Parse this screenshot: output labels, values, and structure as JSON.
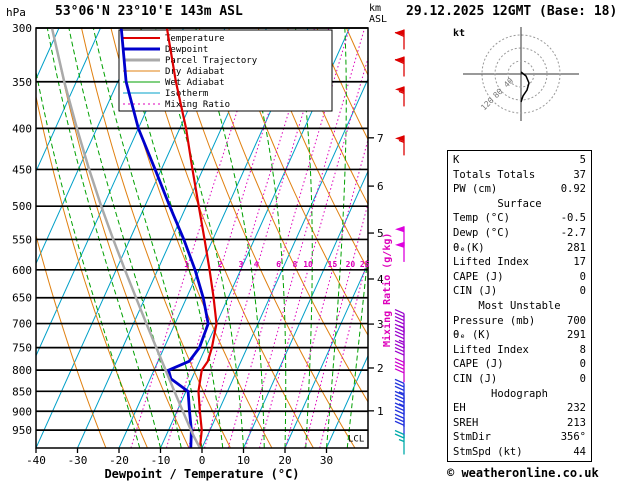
{
  "header": {
    "pressure_unit": "hPa",
    "station_title": "53°06'N 23°10'E 143m ASL",
    "datetime_title": "29.12.2025 12GMT (Base: 18)",
    "altitude_unit_line1": "km",
    "altitude_unit_line2": "ASL"
  },
  "footer": {
    "copyright": "© weatheronline.co.uk"
  },
  "legend": [
    {
      "label": "Temperature",
      "color": "#dd0000",
      "width": 2,
      "style": "solid"
    },
    {
      "label": "Dewpoint",
      "color": "#0000cc",
      "width": 3,
      "style": "solid"
    },
    {
      "label": "Parcel Trajectory",
      "color": "#aaaaaa",
      "width": 3,
      "style": "solid"
    },
    {
      "label": "Dry Adiabat",
      "color": "#e08010",
      "width": 1,
      "style": "solid"
    },
    {
      "label": "Wet Adiabat",
      "color": "#00a000",
      "width": 1,
      "style": "solid"
    },
    {
      "label": "Isotherm",
      "color": "#00a0c8",
      "width": 1,
      "style": "solid"
    },
    {
      "label": "Mixing Ratio",
      "color": "#dd00bb",
      "width": 1,
      "style": "dotted"
    }
  ],
  "axes": {
    "pressure_ticks": [
      300,
      350,
      400,
      450,
      500,
      550,
      600,
      650,
      700,
      750,
      800,
      850,
      900,
      950
    ],
    "temp_ticks": [
      -40,
      -30,
      -20,
      -10,
      0,
      10,
      20,
      30
    ],
    "xlabel": "Dewpoint / Temperature (°C)",
    "km_ticks": [
      {
        "km": 7,
        "p": 411
      },
      {
        "km": 6,
        "p": 472
      },
      {
        "km": 5,
        "p": 540
      },
      {
        "km": 4,
        "p": 616
      },
      {
        "km": 3,
        "p": 701
      },
      {
        "km": 2,
        "p": 795
      },
      {
        "km": 1,
        "p": 899
      }
    ],
    "mixing_ratio_values": [
      1,
      2,
      3,
      4,
      6,
      8,
      10,
      15,
      20,
      25
    ],
    "mixing_ratio_axis_label": "Mixing Ratio (g/kg)",
    "lcl_label": "LCL",
    "lcl_pressure": 970
  },
  "chart_data": {
    "type": "line",
    "title": "Skew-T log-P sounding 53°06'N 23°10'E 143m ASL 29.12.2025 12GMT",
    "x_axis": {
      "label": "Dewpoint / Temperature (°C)",
      "min": -40,
      "max": 40,
      "unit": "°C"
    },
    "y_axis": {
      "label": "hPa",
      "min": 300,
      "max": 1000,
      "scale": "log",
      "unit": "hPa"
    },
    "series": [
      {
        "name": "Temperature",
        "color": "#dd0000",
        "width": 2.2,
        "points": [
          [
            1000,
            -0.5
          ],
          [
            950,
            -2
          ],
          [
            900,
            -4.5
          ],
          [
            850,
            -7
          ],
          [
            800,
            -8.5
          ],
          [
            780,
            -8
          ],
          [
            750,
            -8.5
          ],
          [
            700,
            -10
          ],
          [
            650,
            -13.5
          ],
          [
            600,
            -17.5
          ],
          [
            550,
            -22
          ],
          [
            500,
            -27
          ],
          [
            450,
            -32.5
          ],
          [
            400,
            -38.5
          ],
          [
            350,
            -46
          ],
          [
            300,
            -54
          ]
        ]
      },
      {
        "name": "Dewpoint",
        "color": "#0000cc",
        "width": 2.8,
        "points": [
          [
            1000,
            -2.7
          ],
          [
            950,
            -4.5
          ],
          [
            900,
            -7
          ],
          [
            850,
            -9.5
          ],
          [
            820,
            -15
          ],
          [
            800,
            -16.5
          ],
          [
            780,
            -12.5
          ],
          [
            750,
            -11.5
          ],
          [
            700,
            -12
          ],
          [
            650,
            -16
          ],
          [
            600,
            -21
          ],
          [
            550,
            -27
          ],
          [
            500,
            -34
          ],
          [
            450,
            -41.5
          ],
          [
            400,
            -50
          ],
          [
            350,
            -58
          ],
          [
            300,
            -65
          ]
        ]
      },
      {
        "name": "Parcel Trajectory",
        "color": "#aaaaaa",
        "width": 2.5,
        "points": [
          [
            1000,
            -0.5
          ],
          [
            970,
            -3
          ],
          [
            950,
            -4.6
          ],
          [
            900,
            -8.6
          ],
          [
            850,
            -12.8
          ],
          [
            800,
            -17.2
          ],
          [
            750,
            -21.9
          ],
          [
            700,
            -26.9
          ],
          [
            650,
            -32.2
          ],
          [
            600,
            -37.9
          ],
          [
            550,
            -44
          ],
          [
            500,
            -50.5
          ],
          [
            450,
            -57.4
          ],
          [
            400,
            -64.8
          ],
          [
            350,
            -72.9
          ],
          [
            300,
            -81.7
          ]
        ]
      }
    ],
    "wind_barbs": [
      {
        "p": 310,
        "spd": 60,
        "color": "#dd0000"
      },
      {
        "p": 335,
        "spd": 60,
        "color": "#dd0000"
      },
      {
        "p": 365,
        "spd": 55,
        "color": "#dd0000"
      },
      {
        "p": 420,
        "spd": 55,
        "color": "#dd0000"
      },
      {
        "p": 545,
        "spd": 50,
        "color": "#dd00dd"
      },
      {
        "p": 570,
        "spd": 50,
        "color": "#dd00dd"
      },
      {
        "p": 700,
        "spd": 45,
        "color": "#9900cc"
      },
      {
        "p": 730,
        "spd": 45,
        "color": "#9900cc"
      },
      {
        "p": 765,
        "spd": 40,
        "color": "#9900cc"
      },
      {
        "p": 805,
        "spd": 40,
        "color": "#cc00cc"
      },
      {
        "p": 855,
        "spd": 35,
        "color": "#2233dd"
      },
      {
        "p": 885,
        "spd": 35,
        "color": "#2233dd"
      },
      {
        "p": 915,
        "spd": 30,
        "color": "#2233dd"
      },
      {
        "p": 945,
        "spd": 30,
        "color": "#2233dd"
      },
      {
        "p": 990,
        "spd": 25,
        "color": "#00aaaa"
      }
    ]
  },
  "hodograph": {
    "unit_label": "kt",
    "ring_labels": [
      {
        "label": "40",
        "r": 15
      },
      {
        "label": "80",
        "r": 30
      },
      {
        "label": "120",
        "r": 45
      }
    ],
    "trace": [
      [
        0,
        -2
      ],
      [
        5,
        2
      ],
      [
        8,
        9
      ],
      [
        6,
        16
      ],
      [
        2,
        22
      ],
      [
        0,
        28
      ]
    ]
  },
  "table": {
    "top_rows": [
      {
        "label": "K",
        "value": "5"
      },
      {
        "label": "Totals Totals",
        "value": "37"
      },
      {
        "label": "PW (cm)",
        "value": "0.92"
      }
    ],
    "sections": [
      {
        "title": "Surface",
        "rows": [
          {
            "label": "Temp (°C)",
            "value": "-0.5"
          },
          {
            "label": "Dewp (°C)",
            "value": "-2.7"
          },
          {
            "label": "θₑ(K)",
            "value": "281"
          },
          {
            "label": "Lifted Index",
            "value": "17"
          },
          {
            "label": "CAPE (J)",
            "value": "0"
          },
          {
            "label": "CIN (J)",
            "value": "0"
          }
        ]
      },
      {
        "title": "Most Unstable",
        "rows": [
          {
            "label": "Pressure (mb)",
            "value": "700"
          },
          {
            "label": "θₑ (K)",
            "value": "291"
          },
          {
            "label": "Lifted Index",
            "value": "8"
          },
          {
            "label": "CAPE (J)",
            "value": "0"
          },
          {
            "label": "CIN (J)",
            "value": "0"
          }
        ]
      },
      {
        "title": "Hodograph",
        "rows": [
          {
            "label": "EH",
            "value": "232"
          },
          {
            "label": "SREH",
            "value": "213"
          },
          {
            "label": "StmDir",
            "value": "356°"
          },
          {
            "label": "StmSpd (kt)",
            "value": "44"
          }
        ]
      }
    ]
  }
}
